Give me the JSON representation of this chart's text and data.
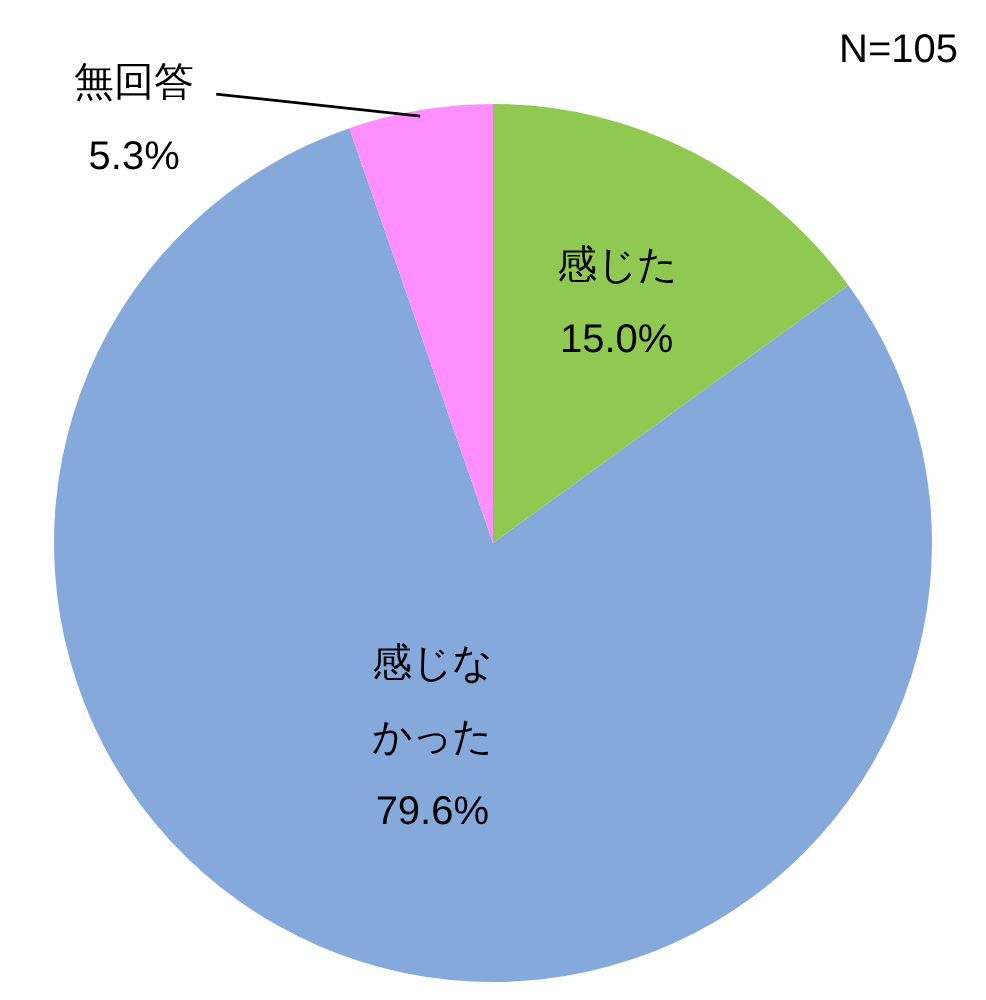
{
  "chart_data": {
    "type": "pie",
    "categories": [
      "感じた",
      "感じなかった",
      "無回答"
    ],
    "values": [
      15.0,
      79.6,
      5.3
    ],
    "colors": [
      "#8fc952",
      "#86a9db",
      "#ff8fff"
    ],
    "value_labels": [
      "15.0%",
      "79.6%",
      "5.3%"
    ],
    "annotations": [
      "N=105"
    ]
  }
}
